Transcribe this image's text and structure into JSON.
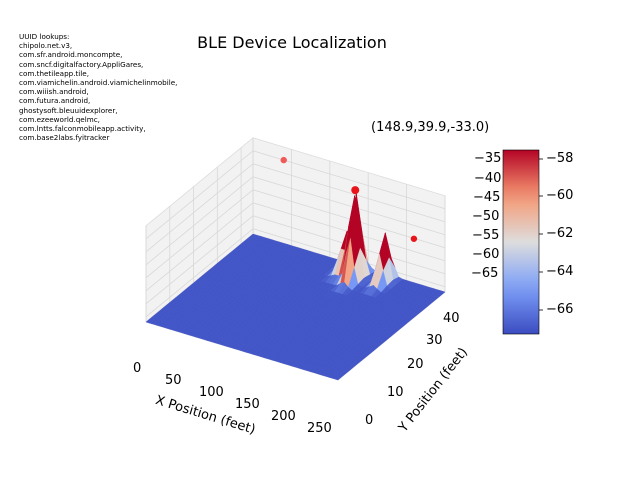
{
  "chart_data": {
    "type": "surface3d",
    "title": "BLE Device Localization",
    "xlabel": "X Position (feet)",
    "ylabel": "Y Position (feet)",
    "zlabel": "",
    "xlim": [
      0,
      250
    ],
    "ylim": [
      0,
      45
    ],
    "zlim": [
      -67,
      -33
    ],
    "x_ticks": [
      "0",
      "50",
      "100",
      "150",
      "200",
      "250"
    ],
    "y_ticks": [
      "0",
      "10",
      "20",
      "30",
      "40"
    ],
    "z_ticks": [
      "−35",
      "−40",
      "−45",
      "−50",
      "−55",
      "−60",
      "−65"
    ],
    "colormap": "coolwarm",
    "colorbar_ticks": [
      "−58",
      "−60",
      "−62",
      "−64",
      "−66"
    ],
    "colorbar_range": [
      -67.3,
      -57.4
    ],
    "baseline_rssi": -67,
    "peaks": [
      {
        "x": 148.9,
        "y": 39.9,
        "z": -33.0
      },
      {
        "x": 140,
        "y": 42,
        "z": -37
      },
      {
        "x": 180,
        "y": 42,
        "z": -48
      },
      {
        "x": 130,
        "y": 42,
        "z": -52
      }
    ],
    "highlight_points": [
      {
        "x": 148.9,
        "y": 39.9,
        "z": -33.0
      },
      {
        "x": 40,
        "y": 45,
        "z": -35
      },
      {
        "x": 225,
        "y": 40,
        "z": -45
      }
    ],
    "annotation": "(148.9,39.9,-33.0)",
    "uuid_header": "UUID lookups:",
    "uuid_lookups": [
      "chipolo.net.v3,",
      "com.sfr.android.moncompte,",
      "com.sncf.digitalfactory.AppliGares,",
      "com.thetileapp.tile,",
      "com.viamichelin.android.viamichelinmobile,",
      "com.wiiish.android,",
      "com.futura.android,",
      "ghostysoft.bleuuidexplorer,",
      "com.ezeeworld.qelmc,",
      "com.lntts.falconmobileapp.activity,",
      "com.base2labs.fyitracker"
    ],
    "grid": true
  }
}
